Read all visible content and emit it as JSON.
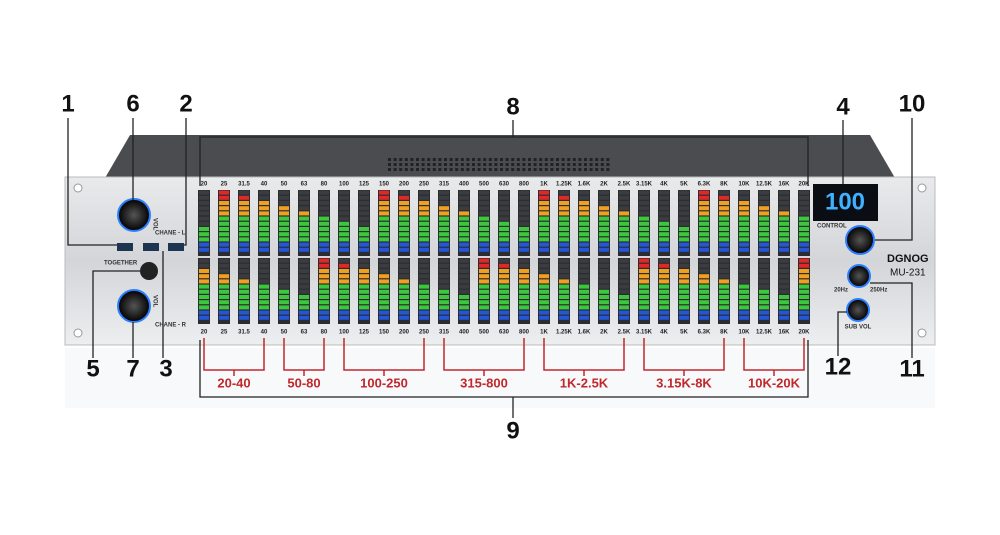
{
  "callouts": [
    "1",
    "2",
    "3",
    "4",
    "5",
    "6",
    "7",
    "8",
    "9",
    "10",
    "11",
    "12"
  ],
  "bands": [
    "20",
    "25",
    "31.5",
    "40",
    "50",
    "63",
    "80",
    "100",
    "125",
    "150",
    "200",
    "250",
    "315",
    "400",
    "500",
    "630",
    "800",
    "1K",
    "1.25K",
    "1.6K",
    "2K",
    "2.5K",
    "3.15K",
    "4K",
    "5K",
    "6.3K",
    "8K",
    "10K",
    "12.5K",
    "16K",
    "20K"
  ],
  "ranges": [
    "20-40",
    "50-80",
    "100-250",
    "315-800",
    "1K-2.5K",
    "3.15K-8K",
    "10K-20K"
  ],
  "panel": {
    "display": "100",
    "control": "CONTROL",
    "brand": "DGNOG",
    "model": "MU-231",
    "low": "20Hz",
    "high": "250Hz",
    "sub": "SUB VOL",
    "together": "TOGETHER",
    "left": "CHANE - L",
    "right": "CHANE - R",
    "vol": "VOL"
  }
}
